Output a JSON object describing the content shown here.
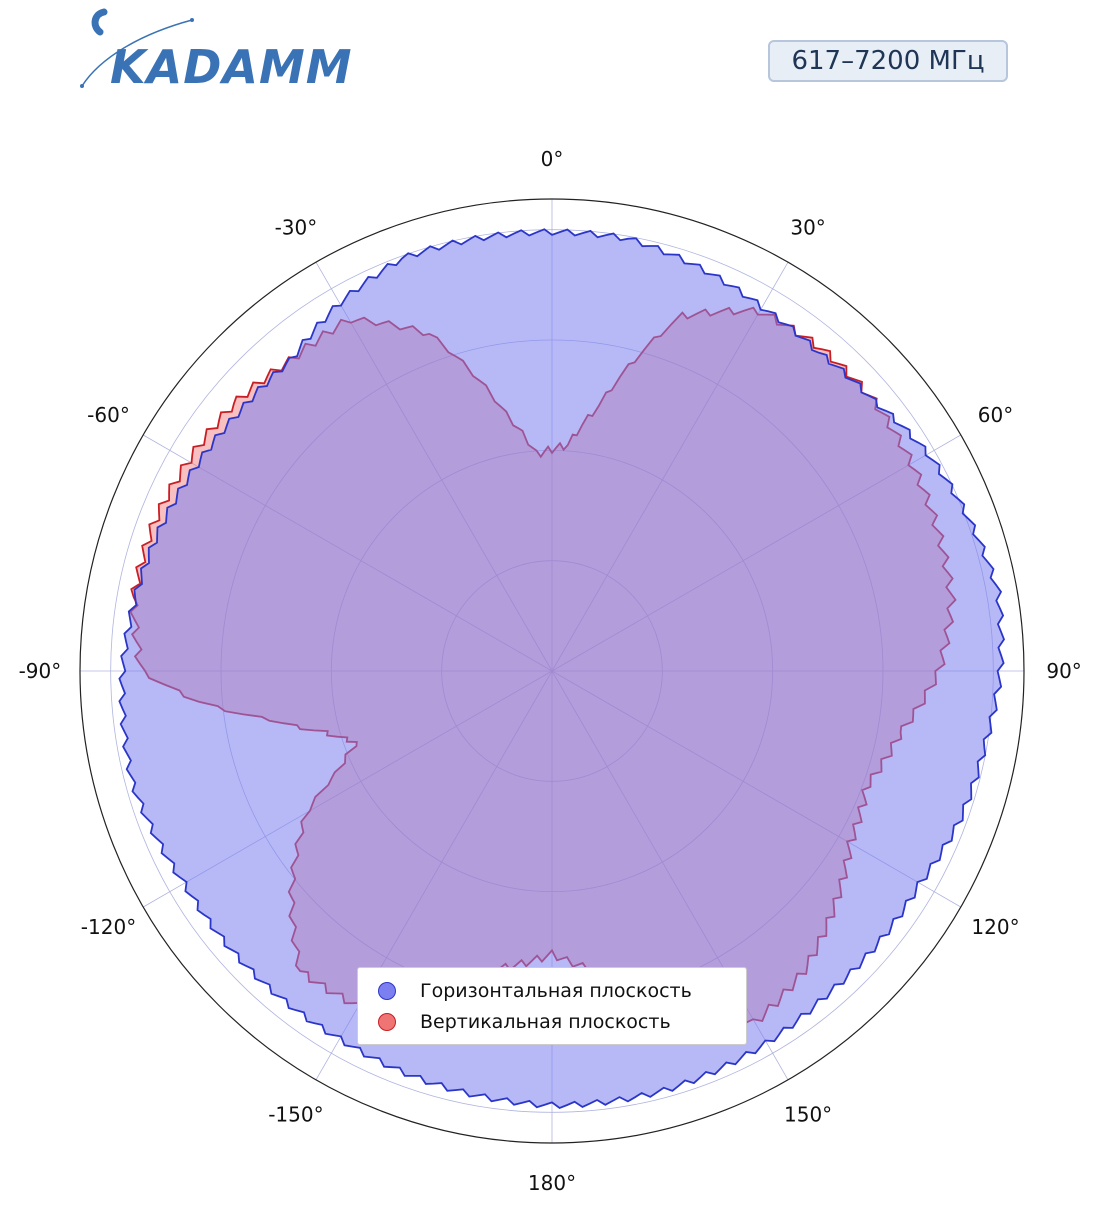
{
  "header": {
    "logo_text": "KADAMM",
    "frequency_range": "617–7200 МГц"
  },
  "colors": {
    "horizontal_fill": "#7b7ff0",
    "horizontal_line": "#2b36c8",
    "vertical_fill": "#ef7474",
    "vertical_line": "#c81f25",
    "grid": "#b0b4e0",
    "logo": "#3a73b5"
  },
  "chart_data": {
    "type": "polar-area",
    "angle_unit": "degrees",
    "angle_ticks": [
      "0°",
      "30°",
      "60°",
      "90°",
      "120°",
      "150°",
      "180°",
      "-150°",
      "-120°",
      "-90°",
      "-60°",
      "-30°"
    ],
    "radial_max": 1.0,
    "radial_rings": [
      0.25,
      0.5,
      0.75,
      1.0
    ],
    "series": [
      {
        "name": "Горизонтальная плоскость",
        "points": [
          [
            -180,
            0.92
          ],
          [
            -165,
            0.91
          ],
          [
            -150,
            0.9
          ],
          [
            -135,
            0.9
          ],
          [
            -120,
            0.9
          ],
          [
            -105,
            0.92
          ],
          [
            -90,
            0.91
          ],
          [
            -75,
            0.89
          ],
          [
            -60,
            0.87
          ],
          [
            -50,
            0.86
          ],
          [
            -40,
            0.86
          ],
          [
            -30,
            0.9
          ],
          [
            -20,
            0.93
          ],
          [
            -10,
            0.93
          ],
          [
            0,
            0.93
          ],
          [
            10,
            0.93
          ],
          [
            20,
            0.91
          ],
          [
            30,
            0.89
          ],
          [
            40,
            0.88
          ],
          [
            50,
            0.89
          ],
          [
            60,
            0.92
          ],
          [
            70,
            0.94
          ],
          [
            80,
            0.96
          ],
          [
            90,
            0.95
          ],
          [
            100,
            0.93
          ],
          [
            110,
            0.92
          ],
          [
            120,
            0.9
          ],
          [
            130,
            0.9
          ],
          [
            140,
            0.9
          ],
          [
            150,
            0.91
          ],
          [
            165,
            0.92
          ],
          [
            180,
            0.92
          ]
        ]
      },
      {
        "name": "Вертикальная плоскость",
        "points": [
          [
            -180,
            0.6
          ],
          [
            -170,
            0.64
          ],
          [
            -160,
            0.74
          ],
          [
            -150,
            0.82
          ],
          [
            -140,
            0.83
          ],
          [
            -130,
            0.72
          ],
          [
            -120,
            0.6
          ],
          [
            -115,
            0.5
          ],
          [
            -110,
            0.44
          ],
          [
            -105,
            0.5
          ],
          [
            -100,
            0.6
          ],
          [
            -95,
            0.75
          ],
          [
            -90,
            0.87
          ],
          [
            -80,
            0.9
          ],
          [
            -70,
            0.9
          ],
          [
            -60,
            0.89
          ],
          [
            -50,
            0.88
          ],
          [
            -40,
            0.86
          ],
          [
            -30,
            0.86
          ],
          [
            -20,
            0.76
          ],
          [
            -10,
            0.55
          ],
          [
            -4,
            0.46
          ],
          [
            0,
            0.47
          ],
          [
            4,
            0.48
          ],
          [
            10,
            0.57
          ],
          [
            20,
            0.8
          ],
          [
            30,
            0.88
          ],
          [
            40,
            0.89
          ],
          [
            50,
            0.89
          ],
          [
            60,
            0.88
          ],
          [
            70,
            0.87
          ],
          [
            80,
            0.86
          ],
          [
            90,
            0.82
          ],
          [
            100,
            0.75
          ],
          [
            110,
            0.71
          ],
          [
            120,
            0.73
          ],
          [
            130,
            0.78
          ],
          [
            140,
            0.83
          ],
          [
            150,
            0.86
          ],
          [
            160,
            0.77
          ],
          [
            170,
            0.65
          ],
          [
            180,
            0.6
          ]
        ]
      }
    ],
    "legend": {
      "position": "bottom-center",
      "entries": [
        "Горизонтальная плоскость",
        "Вертикальная плоскость"
      ]
    }
  }
}
